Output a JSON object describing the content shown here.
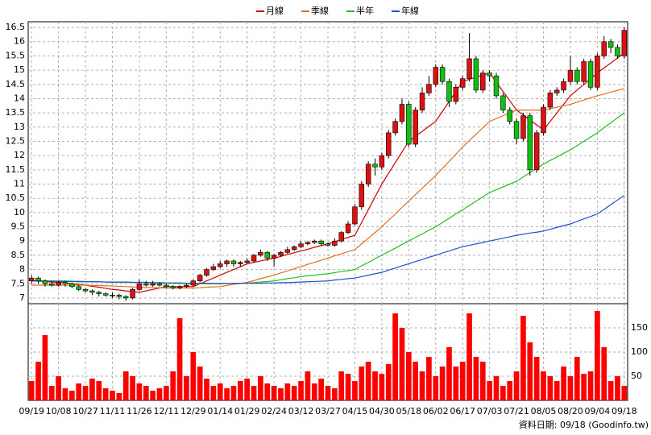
{
  "chart_data": [
    {
      "type": "candlestick",
      "categories": [
        "09/19",
        null,
        null,
        null,
        "10/08",
        null,
        null,
        null,
        "10/27",
        null,
        null,
        null,
        "11/11",
        null,
        null,
        null,
        "11/26",
        null,
        null,
        null,
        "12/11",
        null,
        null,
        null,
        "12/29",
        null,
        null,
        null,
        "01/14",
        null,
        null,
        null,
        "01/29",
        null,
        null,
        null,
        "02/24",
        null,
        null,
        null,
        "03/12",
        null,
        null,
        null,
        "03/27",
        null,
        null,
        null,
        "04/15",
        null,
        null,
        null,
        "04/30",
        null,
        null,
        null,
        "05/18",
        null,
        null,
        null,
        "06/02",
        null,
        null,
        null,
        "06/17",
        null,
        null,
        null,
        "07/03",
        null,
        null,
        null,
        "07/21",
        null,
        null,
        null,
        "08/05",
        null,
        null,
        null,
        "08/20",
        null,
        null,
        null,
        "09/04",
        null,
        null,
        null,
        "09/18"
      ],
      "open": [
        7.6,
        7.7,
        7.6,
        7.5,
        7.45,
        7.55,
        7.5,
        7.4,
        7.3,
        7.25,
        7.2,
        7.15,
        7.1,
        7.1,
        7.05,
        7.0,
        7.3,
        7.5,
        7.45,
        7.5,
        7.45,
        7.4,
        7.35,
        7.4,
        7.45,
        7.6,
        7.8,
        8.0,
        8.1,
        8.2,
        8.3,
        8.2,
        8.25,
        8.3,
        8.5,
        8.6,
        8.4,
        8.5,
        8.6,
        8.7,
        8.8,
        8.9,
        8.95,
        9.0,
        8.9,
        8.85,
        9.0,
        9.3,
        9.6,
        10.2,
        11.0,
        11.7,
        11.6,
        12.0,
        12.8,
        13.2,
        13.8,
        12.4,
        13.6,
        14.2,
        14.5,
        15.1,
        14.6,
        13.9,
        14.4,
        14.7,
        15.4,
        14.3,
        14.9,
        14.8,
        14.1,
        13.6,
        13.2,
        12.6,
        13.4,
        11.5,
        12.8,
        13.7,
        14.2,
        14.3,
        14.6,
        15.0,
        14.6,
        15.3,
        14.4,
        15.5,
        16.0,
        15.8,
        15.5
      ],
      "high": [
        7.8,
        7.75,
        7.65,
        7.6,
        7.6,
        7.6,
        7.55,
        7.45,
        7.35,
        7.3,
        7.25,
        7.2,
        7.2,
        7.15,
        7.1,
        7.35,
        7.65,
        7.6,
        7.6,
        7.55,
        7.5,
        7.45,
        7.45,
        7.5,
        7.65,
        7.85,
        8.05,
        8.2,
        8.3,
        8.35,
        8.35,
        8.3,
        8.4,
        8.55,
        8.7,
        8.65,
        8.55,
        8.65,
        8.8,
        8.85,
        9.0,
        9.0,
        9.05,
        9.05,
        8.95,
        9.1,
        9.35,
        9.7,
        10.3,
        11.1,
        11.8,
        11.9,
        12.1,
        12.9,
        13.3,
        14.0,
        13.9,
        13.7,
        14.4,
        14.8,
        15.2,
        15.2,
        14.7,
        14.5,
        14.8,
        16.3,
        15.5,
        15.0,
        15.0,
        14.9,
        14.2,
        13.7,
        13.3,
        13.5,
        13.5,
        12.9,
        13.8,
        14.3,
        14.4,
        14.7,
        15.5,
        15.1,
        15.4,
        15.4,
        15.6,
        16.2,
        16.1,
        15.9,
        16.5
      ],
      "low": [
        7.5,
        7.5,
        7.4,
        7.4,
        7.4,
        7.4,
        7.35,
        7.25,
        7.2,
        7.1,
        7.05,
        7.05,
        7.0,
        6.95,
        6.9,
        6.95,
        7.25,
        7.4,
        7.4,
        7.4,
        7.35,
        7.3,
        7.3,
        7.35,
        7.4,
        7.55,
        7.75,
        7.95,
        8.05,
        8.1,
        8.1,
        8.1,
        8.2,
        8.25,
        8.45,
        8.3,
        8.1,
        8.45,
        8.55,
        8.65,
        8.75,
        8.85,
        8.9,
        8.85,
        8.8,
        8.8,
        8.95,
        9.25,
        9.55,
        10.1,
        10.9,
        11.3,
        11.5,
        11.9,
        12.7,
        13.1,
        12.3,
        12.3,
        13.5,
        14.1,
        14.4,
        14.5,
        13.7,
        13.8,
        14.3,
        14.6,
        14.2,
        14.2,
        14.6,
        14.0,
        13.5,
        13.1,
        12.4,
        12.5,
        11.3,
        11.4,
        12.7,
        13.6,
        14.1,
        14.2,
        14.5,
        14.5,
        14.5,
        14.3,
        14.3,
        15.4,
        15.6,
        15.4,
        15.4
      ],
      "close": [
        7.7,
        7.6,
        7.5,
        7.45,
        7.55,
        7.5,
        7.4,
        7.3,
        7.25,
        7.2,
        7.15,
        7.1,
        7.1,
        7.05,
        7.0,
        7.3,
        7.5,
        7.45,
        7.5,
        7.45,
        7.4,
        7.35,
        7.4,
        7.45,
        7.6,
        7.8,
        8.0,
        8.1,
        8.2,
        8.3,
        8.2,
        8.25,
        8.3,
        8.5,
        8.6,
        8.4,
        8.5,
        8.6,
        8.7,
        8.8,
        8.9,
        8.95,
        9.0,
        8.9,
        8.85,
        9.0,
        9.3,
        9.6,
        10.2,
        11.0,
        11.7,
        11.6,
        12.0,
        12.8,
        13.2,
        13.8,
        12.4,
        13.6,
        14.2,
        14.5,
        15.1,
        14.6,
        13.9,
        14.4,
        14.7,
        15.4,
        14.3,
        14.9,
        14.8,
        14.1,
        13.6,
        13.2,
        12.6,
        13.4,
        11.5,
        12.8,
        13.7,
        14.2,
        14.3,
        14.6,
        15.0,
        14.6,
        15.3,
        14.4,
        15.5,
        16.0,
        15.8,
        15.5,
        16.4
      ],
      "up_color": "#e01010",
      "down_color": "#10c010",
      "series": [
        {
          "name": "月線",
          "color": "#d00000",
          "values": [
            7.6,
            7.59,
            7.58,
            7.56,
            7.55,
            7.53,
            7.5,
            7.48,
            7.45,
            7.41,
            7.38,
            7.34,
            7.3,
            7.28,
            7.25,
            7.23,
            7.2,
            7.25,
            7.3,
            7.35,
            7.4,
            7.4,
            7.4,
            7.4,
            7.4,
            7.5,
            7.6,
            7.7,
            7.8,
            7.9,
            8.0,
            8.1,
            8.2,
            8.25,
            8.3,
            8.35,
            8.4,
            8.46,
            8.53,
            8.59,
            8.65,
            8.71,
            8.78,
            8.84,
            8.9,
            8.98,
            9.05,
            9.13,
            9.2,
            9.65,
            10.1,
            10.55,
            11.0,
            11.38,
            11.75,
            12.13,
            12.5,
            12.68,
            12.85,
            13.03,
            13.2,
            13.55,
            13.9,
            14.25,
            14.6,
            14.68,
            14.75,
            14.83,
            14.9,
            14.58,
            14.25,
            13.93,
            13.6,
            13.43,
            13.25,
            13.08,
            12.9,
            13.2,
            13.5,
            13.8,
            14.1,
            14.3,
            14.5,
            14.7,
            14.9,
            15.08,
            15.25,
            15.43,
            15.6
          ]
        },
        {
          "name": "季線",
          "color": "#e07020",
          "values": [
            7.45,
            7.45,
            7.45,
            7.45,
            7.45,
            7.45,
            7.45,
            7.45,
            7.45,
            7.44,
            7.44,
            7.43,
            7.42,
            7.41,
            7.4,
            7.39,
            7.38,
            7.37,
            7.37,
            7.36,
            7.35,
            7.35,
            7.35,
            7.35,
            7.35,
            7.36,
            7.38,
            7.39,
            7.4,
            7.44,
            7.48,
            7.51,
            7.55,
            7.61,
            7.68,
            7.74,
            7.8,
            7.88,
            7.95,
            8.03,
            8.1,
            8.18,
            8.25,
            8.33,
            8.4,
            8.48,
            8.55,
            8.63,
            8.7,
            8.9,
            9.1,
            9.3,
            9.5,
            9.73,
            9.95,
            10.18,
            10.4,
            10.63,
            10.85,
            11.08,
            11.3,
            11.55,
            11.8,
            12.05,
            12.3,
            12.53,
            12.75,
            12.98,
            13.2,
            13.3,
            13.4,
            13.5,
            13.6,
            13.6,
            13.6,
            13.6,
            13.6,
            13.65,
            13.7,
            13.75,
            13.8,
            13.88,
            13.95,
            14.03,
            14.1,
            14.16,
            14.23,
            14.29,
            14.35
          ]
        },
        {
          "name": "半年",
          "color": "#20c020",
          "values": [
            7.6,
            7.6,
            7.6,
            7.6,
            7.6,
            7.6,
            7.59,
            7.59,
            7.58,
            7.57,
            7.57,
            7.56,
            7.55,
            7.55,
            7.55,
            7.55,
            7.55,
            7.54,
            7.54,
            7.53,
            7.52,
            7.52,
            7.51,
            7.51,
            7.5,
            7.5,
            7.5,
            7.5,
            7.5,
            7.51,
            7.51,
            7.52,
            7.52,
            7.54,
            7.56,
            7.58,
            7.6,
            7.64,
            7.68,
            7.71,
            7.75,
            7.78,
            7.8,
            7.83,
            7.85,
            7.89,
            7.93,
            7.96,
            8.0,
            8.13,
            8.25,
            8.38,
            8.5,
            8.63,
            8.75,
            8.88,
            9.0,
            9.13,
            9.25,
            9.38,
            9.5,
            9.65,
            9.8,
            9.95,
            10.1,
            10.25,
            10.4,
            10.55,
            10.7,
            10.8,
            10.9,
            11.0,
            11.1,
            11.25,
            11.4,
            11.55,
            11.7,
            11.83,
            11.95,
            12.08,
            12.2,
            12.35,
            12.5,
            12.65,
            12.8,
            12.98,
            13.15,
            13.33,
            13.5
          ]
        },
        {
          "name": "年線",
          "color": "#2050d0",
          "values": [
            7.6,
            7.6,
            7.59,
            7.59,
            7.58,
            7.58,
            7.58,
            7.57,
            7.57,
            7.57,
            7.57,
            7.56,
            7.56,
            7.56,
            7.56,
            7.55,
            7.55,
            7.55,
            7.54,
            7.54,
            7.53,
            7.53,
            7.53,
            7.52,
            7.52,
            7.52,
            7.52,
            7.51,
            7.51,
            7.51,
            7.51,
            7.52,
            7.52,
            7.52,
            7.52,
            7.53,
            7.53,
            7.54,
            7.54,
            7.55,
            7.56,
            7.57,
            7.58,
            7.59,
            7.6,
            7.63,
            7.65,
            7.68,
            7.7,
            7.75,
            7.8,
            7.85,
            7.9,
            7.98,
            8.05,
            8.13,
            8.2,
            8.28,
            8.35,
            8.43,
            8.5,
            8.58,
            8.65,
            8.73,
            8.8,
            8.85,
            8.9,
            8.95,
            9.0,
            9.05,
            9.1,
            9.15,
            9.2,
            9.24,
            9.28,
            9.31,
            9.35,
            9.41,
            9.48,
            9.54,
            9.6,
            9.69,
            9.78,
            9.86,
            9.95,
            10.11,
            10.28,
            10.44,
            10.6
          ]
        }
      ],
      "ylim": [
        6.8,
        16.7
      ],
      "yticks": [
        7,
        7.5,
        8,
        8.5,
        9,
        9.5,
        10,
        10.5,
        11,
        11.5,
        12,
        12.5,
        13,
        13.5,
        14,
        14.5,
        15,
        15.5,
        16,
        16.5
      ],
      "grid": true
    },
    {
      "type": "bar",
      "values": [
        40,
        80,
        135,
        30,
        50,
        25,
        20,
        35,
        30,
        45,
        40,
        25,
        20,
        15,
        60,
        50,
        35,
        30,
        20,
        25,
        30,
        60,
        170,
        50,
        100,
        70,
        45,
        30,
        35,
        25,
        30,
        40,
        45,
        30,
        50,
        35,
        30,
        25,
        35,
        30,
        40,
        60,
        35,
        45,
        30,
        25,
        60,
        55,
        40,
        70,
        80,
        60,
        55,
        75,
        180,
        150,
        100,
        80,
        60,
        90,
        50,
        70,
        110,
        70,
        80,
        180,
        90,
        80,
        40,
        50,
        30,
        40,
        60,
        175,
        120,
        90,
        60,
        50,
        40,
        70,
        50,
        90,
        55,
        60,
        185,
        110,
        40,
        50,
        30
      ],
      "color": "#ff0000",
      "ylim": [
        0,
        200
      ],
      "yticks": [
        50,
        100,
        150
      ],
      "grid": true
    }
  ],
  "footer": "資料日期: 09/18 (Goodinfo.tw)"
}
